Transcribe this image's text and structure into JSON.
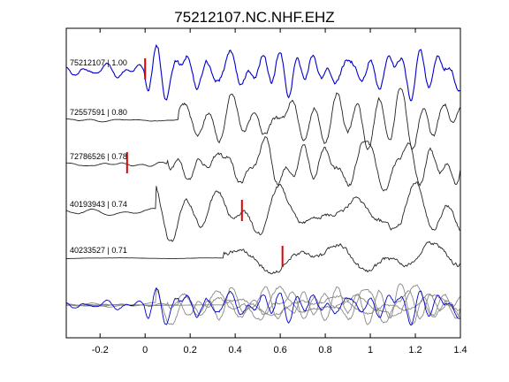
{
  "chart_data": {
    "type": "line",
    "title": "75212107.NC.NHF.EHZ",
    "xlim": [
      -0.35,
      1.4
    ],
    "x_ticks": [
      -0.2,
      0,
      0.2,
      0.4,
      0.6,
      0.8,
      1,
      1.2,
      1.4
    ],
    "x_tick_labels": [
      "-0.2",
      "0",
      "0.2",
      "0.4",
      "0.6",
      "0.8",
      "1",
      "1.2",
      "1.4"
    ],
    "grid": false,
    "colors": {
      "primary": "#0000cc",
      "secondary": "#222222",
      "overlay": "#888888",
      "marker": "#dd0000"
    },
    "traces": [
      {
        "label": "75212107 | 1.00",
        "pick": 0.0,
        "color": "primary"
      },
      {
        "label": "72557591 | 0.80",
        "pick": null,
        "color": "secondary"
      },
      {
        "label": "72786526 | 0.78",
        "pick": -0.08,
        "color": "secondary"
      },
      {
        "label": "40193943 | 0.74",
        "pick": 0.43,
        "color": "secondary"
      },
      {
        "label": "40233527 | 0.71",
        "pick": 0.61,
        "color": "secondary"
      }
    ]
  }
}
